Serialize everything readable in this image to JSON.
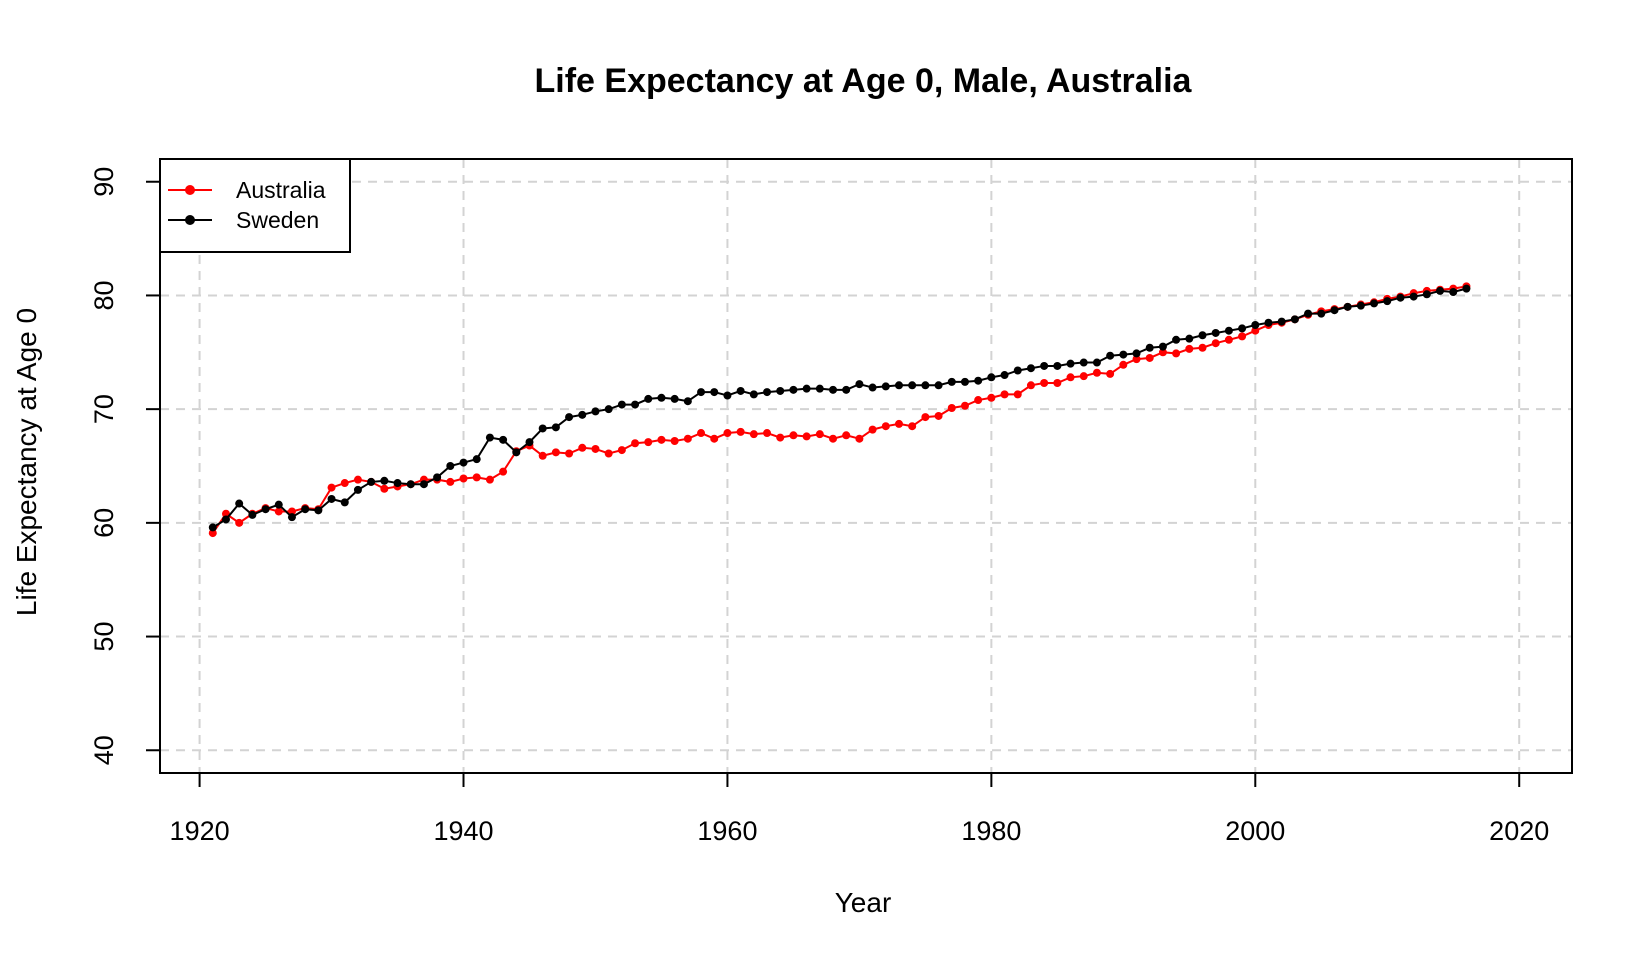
{
  "chart_data": {
    "type": "line",
    "title": "Life Expectancy at Age 0, Male, Australia",
    "xlabel": "Year",
    "ylabel": "Life Expectancy at Age 0",
    "xlim": [
      1917,
      2024
    ],
    "ylim": [
      38,
      92
    ],
    "xticks": [
      1920,
      1940,
      1960,
      1980,
      2000,
      2020
    ],
    "yticks": [
      40,
      50,
      60,
      70,
      80,
      90
    ],
    "grid": true,
    "legend_position": "top-left",
    "x": [
      1921,
      1922,
      1923,
      1924,
      1925,
      1926,
      1927,
      1928,
      1929,
      1930,
      1931,
      1932,
      1933,
      1934,
      1935,
      1936,
      1937,
      1938,
      1939,
      1940,
      1941,
      1942,
      1943,
      1944,
      1945,
      1946,
      1947,
      1948,
      1949,
      1950,
      1951,
      1952,
      1953,
      1954,
      1955,
      1956,
      1957,
      1958,
      1959,
      1960,
      1961,
      1962,
      1963,
      1964,
      1965,
      1966,
      1967,
      1968,
      1969,
      1970,
      1971,
      1972,
      1973,
      1974,
      1975,
      1976,
      1977,
      1978,
      1979,
      1980,
      1981,
      1982,
      1983,
      1984,
      1985,
      1986,
      1987,
      1988,
      1989,
      1990,
      1991,
      1992,
      1993,
      1994,
      1995,
      1996,
      1997,
      1998,
      1999,
      2000,
      2001,
      2002,
      2003,
      2004,
      2005,
      2006,
      2007,
      2008,
      2009,
      2010,
      2011,
      2012,
      2013,
      2014,
      2015,
      2016
    ],
    "series": [
      {
        "name": "Australia",
        "color": "#ff0000",
        "values": [
          59.1,
          60.8,
          60.0,
          60.8,
          61.3,
          61.0,
          61.0,
          61.3,
          61.2,
          63.1,
          63.5,
          63.8,
          63.6,
          63.0,
          63.2,
          63.4,
          63.8,
          63.8,
          63.6,
          63.9,
          64.0,
          63.8,
          64.5,
          66.3,
          66.8,
          65.9,
          66.2,
          66.1,
          66.6,
          66.5,
          66.1,
          66.4,
          67.0,
          67.1,
          67.3,
          67.2,
          67.4,
          67.9,
          67.4,
          67.9,
          68.0,
          67.8,
          67.9,
          67.5,
          67.7,
          67.6,
          67.8,
          67.4,
          67.7,
          67.4,
          68.2,
          68.5,
          68.7,
          68.5,
          69.3,
          69.4,
          70.1,
          70.3,
          70.8,
          71.0,
          71.3,
          71.3,
          72.1,
          72.3,
          72.3,
          72.8,
          72.9,
          73.2,
          73.1,
          73.9,
          74.4,
          74.5,
          75.0,
          74.9,
          75.3,
          75.4,
          75.8,
          76.1,
          76.4,
          76.9,
          77.4,
          77.6,
          77.9,
          78.3,
          78.6,
          78.8,
          79.0,
          79.2,
          79.4,
          79.7,
          79.9,
          80.2,
          80.4,
          80.5,
          80.6,
          80.8
        ]
      },
      {
        "name": "Sweden",
        "color": "#000000",
        "values": [
          59.6,
          60.3,
          61.7,
          60.7,
          61.2,
          61.6,
          60.5,
          61.2,
          61.1,
          62.1,
          61.8,
          62.9,
          63.6,
          63.7,
          63.5,
          63.4,
          63.4,
          64.0,
          65.0,
          65.3,
          65.6,
          67.5,
          67.3,
          66.2,
          67.1,
          68.3,
          68.4,
          69.3,
          69.5,
          69.8,
          70.0,
          70.4,
          70.4,
          70.9,
          71.0,
          70.9,
          70.7,
          71.5,
          71.5,
          71.2,
          71.6,
          71.3,
          71.5,
          71.6,
          71.7,
          71.8,
          71.8,
          71.7,
          71.7,
          72.2,
          71.9,
          72.0,
          72.1,
          72.1,
          72.1,
          72.1,
          72.4,
          72.4,
          72.5,
          72.8,
          73.0,
          73.4,
          73.6,
          73.8,
          73.8,
          74.0,
          74.1,
          74.1,
          74.7,
          74.8,
          74.9,
          75.4,
          75.5,
          76.1,
          76.2,
          76.5,
          76.7,
          76.9,
          77.1,
          77.4,
          77.6,
          77.7,
          77.9,
          78.4,
          78.4,
          78.7,
          79.0,
          79.1,
          79.3,
          79.5,
          79.8,
          79.9,
          80.1,
          80.4,
          80.3,
          80.6
        ]
      }
    ]
  }
}
